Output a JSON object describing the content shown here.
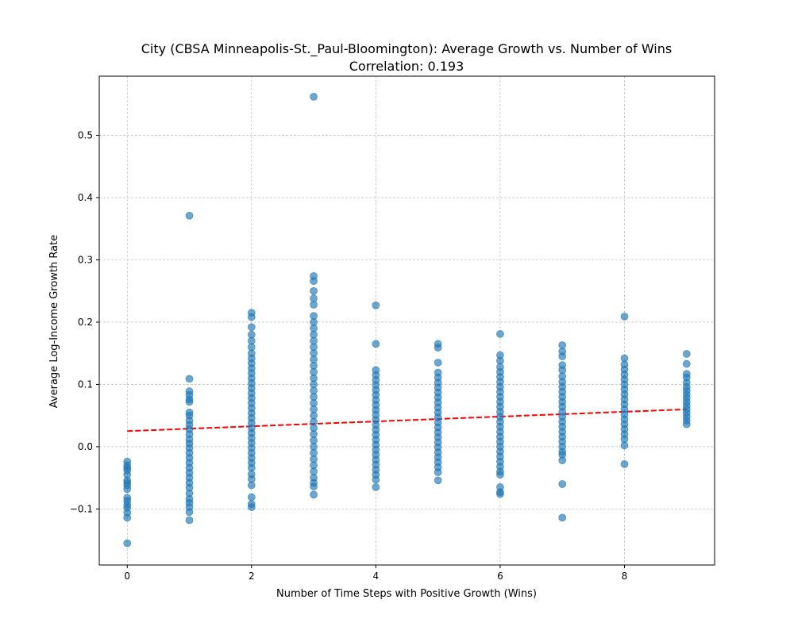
{
  "chart_data": {
    "type": "scatter",
    "title": "City (CBSA Minneapolis-St._Paul-Bloomington): Average Growth vs. Number of Wins",
    "subtitle": "Correlation: 0.193",
    "xlabel": "Number of Time Steps with Positive Growth (Wins)",
    "ylabel": "Average Log-Income Growth Rate",
    "xlim": [
      -0.45,
      9.45
    ],
    "ylim": [
      -0.19,
      0.595
    ],
    "x_ticks": [
      0,
      2,
      4,
      6,
      8
    ],
    "y_ticks": [
      -0.1,
      0.0,
      0.1,
      0.2,
      0.3,
      0.4,
      0.5
    ],
    "x_tick_labels": [
      "0",
      "2",
      "4",
      "6",
      "8"
    ],
    "y_tick_labels": [
      "−0.1",
      "0.0",
      "0.1",
      "0.2",
      "0.3",
      "0.4",
      "0.5"
    ],
    "grid": true,
    "grid_color": "#b0b0b0",
    "point_color": "#1f77b4",
    "trend_color": "#ff0000",
    "trendline": {
      "x": [
        0,
        9
      ],
      "y": [
        0.025,
        0.06
      ]
    },
    "points": [
      {
        "x": 0,
        "y": -0.155
      },
      {
        "x": 0,
        "y": -0.114
      },
      {
        "x": 0,
        "y": -0.106
      },
      {
        "x": 0,
        "y": -0.098
      },
      {
        "x": 0,
        "y": -0.093
      },
      {
        "x": 0,
        "y": -0.087
      },
      {
        "x": 0,
        "y": -0.082
      },
      {
        "x": 0,
        "y": -0.068
      },
      {
        "x": 0,
        "y": -0.062
      },
      {
        "x": 0,
        "y": -0.058
      },
      {
        "x": 0,
        "y": -0.054
      },
      {
        "x": 0,
        "y": -0.045
      },
      {
        "x": 0,
        "y": -0.038
      },
      {
        "x": 0,
        "y": -0.034
      },
      {
        "x": 0,
        "y": -0.03
      },
      {
        "x": 0,
        "y": -0.024
      },
      {
        "x": 1,
        "y": 0.371
      },
      {
        "x": 1,
        "y": 0.109
      },
      {
        "x": 1,
        "y": 0.089
      },
      {
        "x": 1,
        "y": 0.083
      },
      {
        "x": 1,
        "y": 0.076
      },
      {
        "x": 1,
        "y": 0.072
      },
      {
        "x": 1,
        "y": 0.055
      },
      {
        "x": 1,
        "y": 0.05
      },
      {
        "x": 1,
        "y": 0.042
      },
      {
        "x": 1,
        "y": 0.035
      },
      {
        "x": 1,
        "y": 0.028
      },
      {
        "x": 1,
        "y": 0.02
      },
      {
        "x": 1,
        "y": 0.012
      },
      {
        "x": 1,
        "y": 0.005
      },
      {
        "x": 1,
        "y": -0.002
      },
      {
        "x": 1,
        "y": -0.01
      },
      {
        "x": 1,
        "y": -0.018
      },
      {
        "x": 1,
        "y": -0.026
      },
      {
        "x": 1,
        "y": -0.034
      },
      {
        "x": 1,
        "y": -0.042
      },
      {
        "x": 1,
        "y": -0.05
      },
      {
        "x": 1,
        "y": -0.058
      },
      {
        "x": 1,
        "y": -0.066
      },
      {
        "x": 1,
        "y": -0.075
      },
      {
        "x": 1,
        "y": -0.084
      },
      {
        "x": 1,
        "y": -0.09
      },
      {
        "x": 1,
        "y": -0.097
      },
      {
        "x": 1,
        "y": -0.105
      },
      {
        "x": 1,
        "y": -0.118
      },
      {
        "x": 2,
        "y": 0.215
      },
      {
        "x": 2,
        "y": 0.208
      },
      {
        "x": 2,
        "y": 0.192
      },
      {
        "x": 2,
        "y": 0.18
      },
      {
        "x": 2,
        "y": 0.17
      },
      {
        "x": 2,
        "y": 0.16
      },
      {
        "x": 2,
        "y": 0.15
      },
      {
        "x": 2,
        "y": 0.142
      },
      {
        "x": 2,
        "y": 0.134
      },
      {
        "x": 2,
        "y": 0.126
      },
      {
        "x": 2,
        "y": 0.118
      },
      {
        "x": 2,
        "y": 0.11
      },
      {
        "x": 2,
        "y": 0.102
      },
      {
        "x": 2,
        "y": 0.094
      },
      {
        "x": 2,
        "y": 0.086
      },
      {
        "x": 2,
        "y": 0.078
      },
      {
        "x": 2,
        "y": 0.07
      },
      {
        "x": 2,
        "y": 0.062
      },
      {
        "x": 2,
        "y": 0.054
      },
      {
        "x": 2,
        "y": 0.046
      },
      {
        "x": 2,
        "y": 0.038
      },
      {
        "x": 2,
        "y": 0.03
      },
      {
        "x": 2,
        "y": 0.022
      },
      {
        "x": 2,
        "y": 0.014
      },
      {
        "x": 2,
        "y": 0.006
      },
      {
        "x": 2,
        "y": -0.002
      },
      {
        "x": 2,
        "y": -0.01
      },
      {
        "x": 2,
        "y": -0.018
      },
      {
        "x": 2,
        "y": -0.026
      },
      {
        "x": 2,
        "y": -0.034
      },
      {
        "x": 2,
        "y": -0.044
      },
      {
        "x": 2,
        "y": -0.052
      },
      {
        "x": 2,
        "y": -0.062
      },
      {
        "x": 2,
        "y": -0.081
      },
      {
        "x": 2,
        "y": -0.092
      },
      {
        "x": 2,
        "y": -0.097
      },
      {
        "x": 3,
        "y": 0.562
      },
      {
        "x": 3,
        "y": 0.274
      },
      {
        "x": 3,
        "y": 0.266
      },
      {
        "x": 3,
        "y": 0.25
      },
      {
        "x": 3,
        "y": 0.238
      },
      {
        "x": 3,
        "y": 0.228
      },
      {
        "x": 3,
        "y": 0.21
      },
      {
        "x": 3,
        "y": 0.2
      },
      {
        "x": 3,
        "y": 0.19
      },
      {
        "x": 3,
        "y": 0.18
      },
      {
        "x": 3,
        "y": 0.17
      },
      {
        "x": 3,
        "y": 0.16
      },
      {
        "x": 3,
        "y": 0.15
      },
      {
        "x": 3,
        "y": 0.14
      },
      {
        "x": 3,
        "y": 0.13
      },
      {
        "x": 3,
        "y": 0.12
      },
      {
        "x": 3,
        "y": 0.11
      },
      {
        "x": 3,
        "y": 0.1
      },
      {
        "x": 3,
        "y": 0.09
      },
      {
        "x": 3,
        "y": 0.08
      },
      {
        "x": 3,
        "y": 0.07
      },
      {
        "x": 3,
        "y": 0.06
      },
      {
        "x": 3,
        "y": 0.05
      },
      {
        "x": 3,
        "y": 0.04
      },
      {
        "x": 3,
        "y": 0.03
      },
      {
        "x": 3,
        "y": 0.02
      },
      {
        "x": 3,
        "y": 0.01
      },
      {
        "x": 3,
        "y": 0.0
      },
      {
        "x": 3,
        "y": -0.01
      },
      {
        "x": 3,
        "y": -0.02
      },
      {
        "x": 3,
        "y": -0.03
      },
      {
        "x": 3,
        "y": -0.04
      },
      {
        "x": 3,
        "y": -0.05
      },
      {
        "x": 3,
        "y": -0.058
      },
      {
        "x": 3,
        "y": -0.064
      },
      {
        "x": 3,
        "y": -0.077
      },
      {
        "x": 4,
        "y": 0.227
      },
      {
        "x": 4,
        "y": 0.165
      },
      {
        "x": 4,
        "y": 0.123
      },
      {
        "x": 4,
        "y": 0.115
      },
      {
        "x": 4,
        "y": 0.107
      },
      {
        "x": 4,
        "y": 0.099
      },
      {
        "x": 4,
        "y": 0.091
      },
      {
        "x": 4,
        "y": 0.083
      },
      {
        "x": 4,
        "y": 0.075
      },
      {
        "x": 4,
        "y": 0.067
      },
      {
        "x": 4,
        "y": 0.059
      },
      {
        "x": 4,
        "y": 0.051
      },
      {
        "x": 4,
        "y": 0.043
      },
      {
        "x": 4,
        "y": 0.035
      },
      {
        "x": 4,
        "y": 0.027
      },
      {
        "x": 4,
        "y": 0.019
      },
      {
        "x": 4,
        "y": 0.011
      },
      {
        "x": 4,
        "y": 0.003
      },
      {
        "x": 4,
        "y": -0.005
      },
      {
        "x": 4,
        "y": -0.013
      },
      {
        "x": 4,
        "y": -0.021
      },
      {
        "x": 4,
        "y": -0.029
      },
      {
        "x": 4,
        "y": -0.037
      },
      {
        "x": 4,
        "y": -0.045
      },
      {
        "x": 4,
        "y": -0.053
      },
      {
        "x": 4,
        "y": -0.065
      },
      {
        "x": 5,
        "y": 0.165
      },
      {
        "x": 5,
        "y": 0.159
      },
      {
        "x": 5,
        "y": 0.135
      },
      {
        "x": 5,
        "y": 0.119
      },
      {
        "x": 5,
        "y": 0.111
      },
      {
        "x": 5,
        "y": 0.103
      },
      {
        "x": 5,
        "y": 0.095
      },
      {
        "x": 5,
        "y": 0.087
      },
      {
        "x": 5,
        "y": 0.079
      },
      {
        "x": 5,
        "y": 0.071
      },
      {
        "x": 5,
        "y": 0.063
      },
      {
        "x": 5,
        "y": 0.055
      },
      {
        "x": 5,
        "y": 0.047
      },
      {
        "x": 5,
        "y": 0.039
      },
      {
        "x": 5,
        "y": 0.031
      },
      {
        "x": 5,
        "y": 0.023
      },
      {
        "x": 5,
        "y": 0.015
      },
      {
        "x": 5,
        "y": 0.007
      },
      {
        "x": 5,
        "y": -0.001
      },
      {
        "x": 5,
        "y": -0.009
      },
      {
        "x": 5,
        "y": -0.017
      },
      {
        "x": 5,
        "y": -0.025
      },
      {
        "x": 5,
        "y": -0.033
      },
      {
        "x": 5,
        "y": -0.041
      },
      {
        "x": 5,
        "y": -0.054
      },
      {
        "x": 6,
        "y": 0.181
      },
      {
        "x": 6,
        "y": 0.147
      },
      {
        "x": 6,
        "y": 0.138
      },
      {
        "x": 6,
        "y": 0.128
      },
      {
        "x": 6,
        "y": 0.12
      },
      {
        "x": 6,
        "y": 0.112
      },
      {
        "x": 6,
        "y": 0.104
      },
      {
        "x": 6,
        "y": 0.096
      },
      {
        "x": 6,
        "y": 0.088
      },
      {
        "x": 6,
        "y": 0.08
      },
      {
        "x": 6,
        "y": 0.072
      },
      {
        "x": 6,
        "y": 0.064
      },
      {
        "x": 6,
        "y": 0.056
      },
      {
        "x": 6,
        "y": 0.048
      },
      {
        "x": 6,
        "y": 0.04
      },
      {
        "x": 6,
        "y": 0.032
      },
      {
        "x": 6,
        "y": 0.024
      },
      {
        "x": 6,
        "y": 0.016
      },
      {
        "x": 6,
        "y": 0.008
      },
      {
        "x": 6,
        "y": 0.0
      },
      {
        "x": 6,
        "y": -0.008
      },
      {
        "x": 6,
        "y": -0.016
      },
      {
        "x": 6,
        "y": -0.024
      },
      {
        "x": 6,
        "y": -0.032
      },
      {
        "x": 6,
        "y": -0.04
      },
      {
        "x": 6,
        "y": -0.045
      },
      {
        "x": 6,
        "y": -0.065
      },
      {
        "x": 6,
        "y": -0.073
      },
      {
        "x": 6,
        "y": -0.076
      },
      {
        "x": 7,
        "y": 0.163
      },
      {
        "x": 7,
        "y": 0.153
      },
      {
        "x": 7,
        "y": 0.145
      },
      {
        "x": 7,
        "y": 0.131
      },
      {
        "x": 7,
        "y": 0.123
      },
      {
        "x": 7,
        "y": 0.113
      },
      {
        "x": 7,
        "y": 0.104
      },
      {
        "x": 7,
        "y": 0.096
      },
      {
        "x": 7,
        "y": 0.088
      },
      {
        "x": 7,
        "y": 0.08
      },
      {
        "x": 7,
        "y": 0.072
      },
      {
        "x": 7,
        "y": 0.064
      },
      {
        "x": 7,
        "y": 0.056
      },
      {
        "x": 7,
        "y": 0.048
      },
      {
        "x": 7,
        "y": 0.04
      },
      {
        "x": 7,
        "y": 0.032
      },
      {
        "x": 7,
        "y": 0.024
      },
      {
        "x": 7,
        "y": 0.016
      },
      {
        "x": 7,
        "y": 0.008
      },
      {
        "x": 7,
        "y": 0.0
      },
      {
        "x": 7,
        "y": -0.008
      },
      {
        "x": 7,
        "y": -0.013
      },
      {
        "x": 7,
        "y": -0.022
      },
      {
        "x": 7,
        "y": -0.06
      },
      {
        "x": 7,
        "y": -0.114
      },
      {
        "x": 8,
        "y": 0.209
      },
      {
        "x": 8,
        "y": 0.142
      },
      {
        "x": 8,
        "y": 0.132
      },
      {
        "x": 8,
        "y": 0.124
      },
      {
        "x": 8,
        "y": 0.116
      },
      {
        "x": 8,
        "y": 0.108
      },
      {
        "x": 8,
        "y": 0.1
      },
      {
        "x": 8,
        "y": 0.092
      },
      {
        "x": 8,
        "y": 0.084
      },
      {
        "x": 8,
        "y": 0.076
      },
      {
        "x": 8,
        "y": 0.068
      },
      {
        "x": 8,
        "y": 0.06
      },
      {
        "x": 8,
        "y": 0.052
      },
      {
        "x": 8,
        "y": 0.044
      },
      {
        "x": 8,
        "y": 0.036
      },
      {
        "x": 8,
        "y": 0.028
      },
      {
        "x": 8,
        "y": 0.02
      },
      {
        "x": 8,
        "y": 0.012
      },
      {
        "x": 8,
        "y": 0.002
      },
      {
        "x": 8,
        "y": -0.028
      },
      {
        "x": 9,
        "y": 0.149
      },
      {
        "x": 9,
        "y": 0.133
      },
      {
        "x": 9,
        "y": 0.117
      },
      {
        "x": 9,
        "y": 0.111
      },
      {
        "x": 9,
        "y": 0.103
      },
      {
        "x": 9,
        "y": 0.096
      },
      {
        "x": 9,
        "y": 0.09
      },
      {
        "x": 9,
        "y": 0.084
      },
      {
        "x": 9,
        "y": 0.078
      },
      {
        "x": 9,
        "y": 0.072
      },
      {
        "x": 9,
        "y": 0.066
      },
      {
        "x": 9,
        "y": 0.06
      },
      {
        "x": 9,
        "y": 0.054
      },
      {
        "x": 9,
        "y": 0.048
      },
      {
        "x": 9,
        "y": 0.042
      },
      {
        "x": 9,
        "y": 0.036
      }
    ]
  }
}
